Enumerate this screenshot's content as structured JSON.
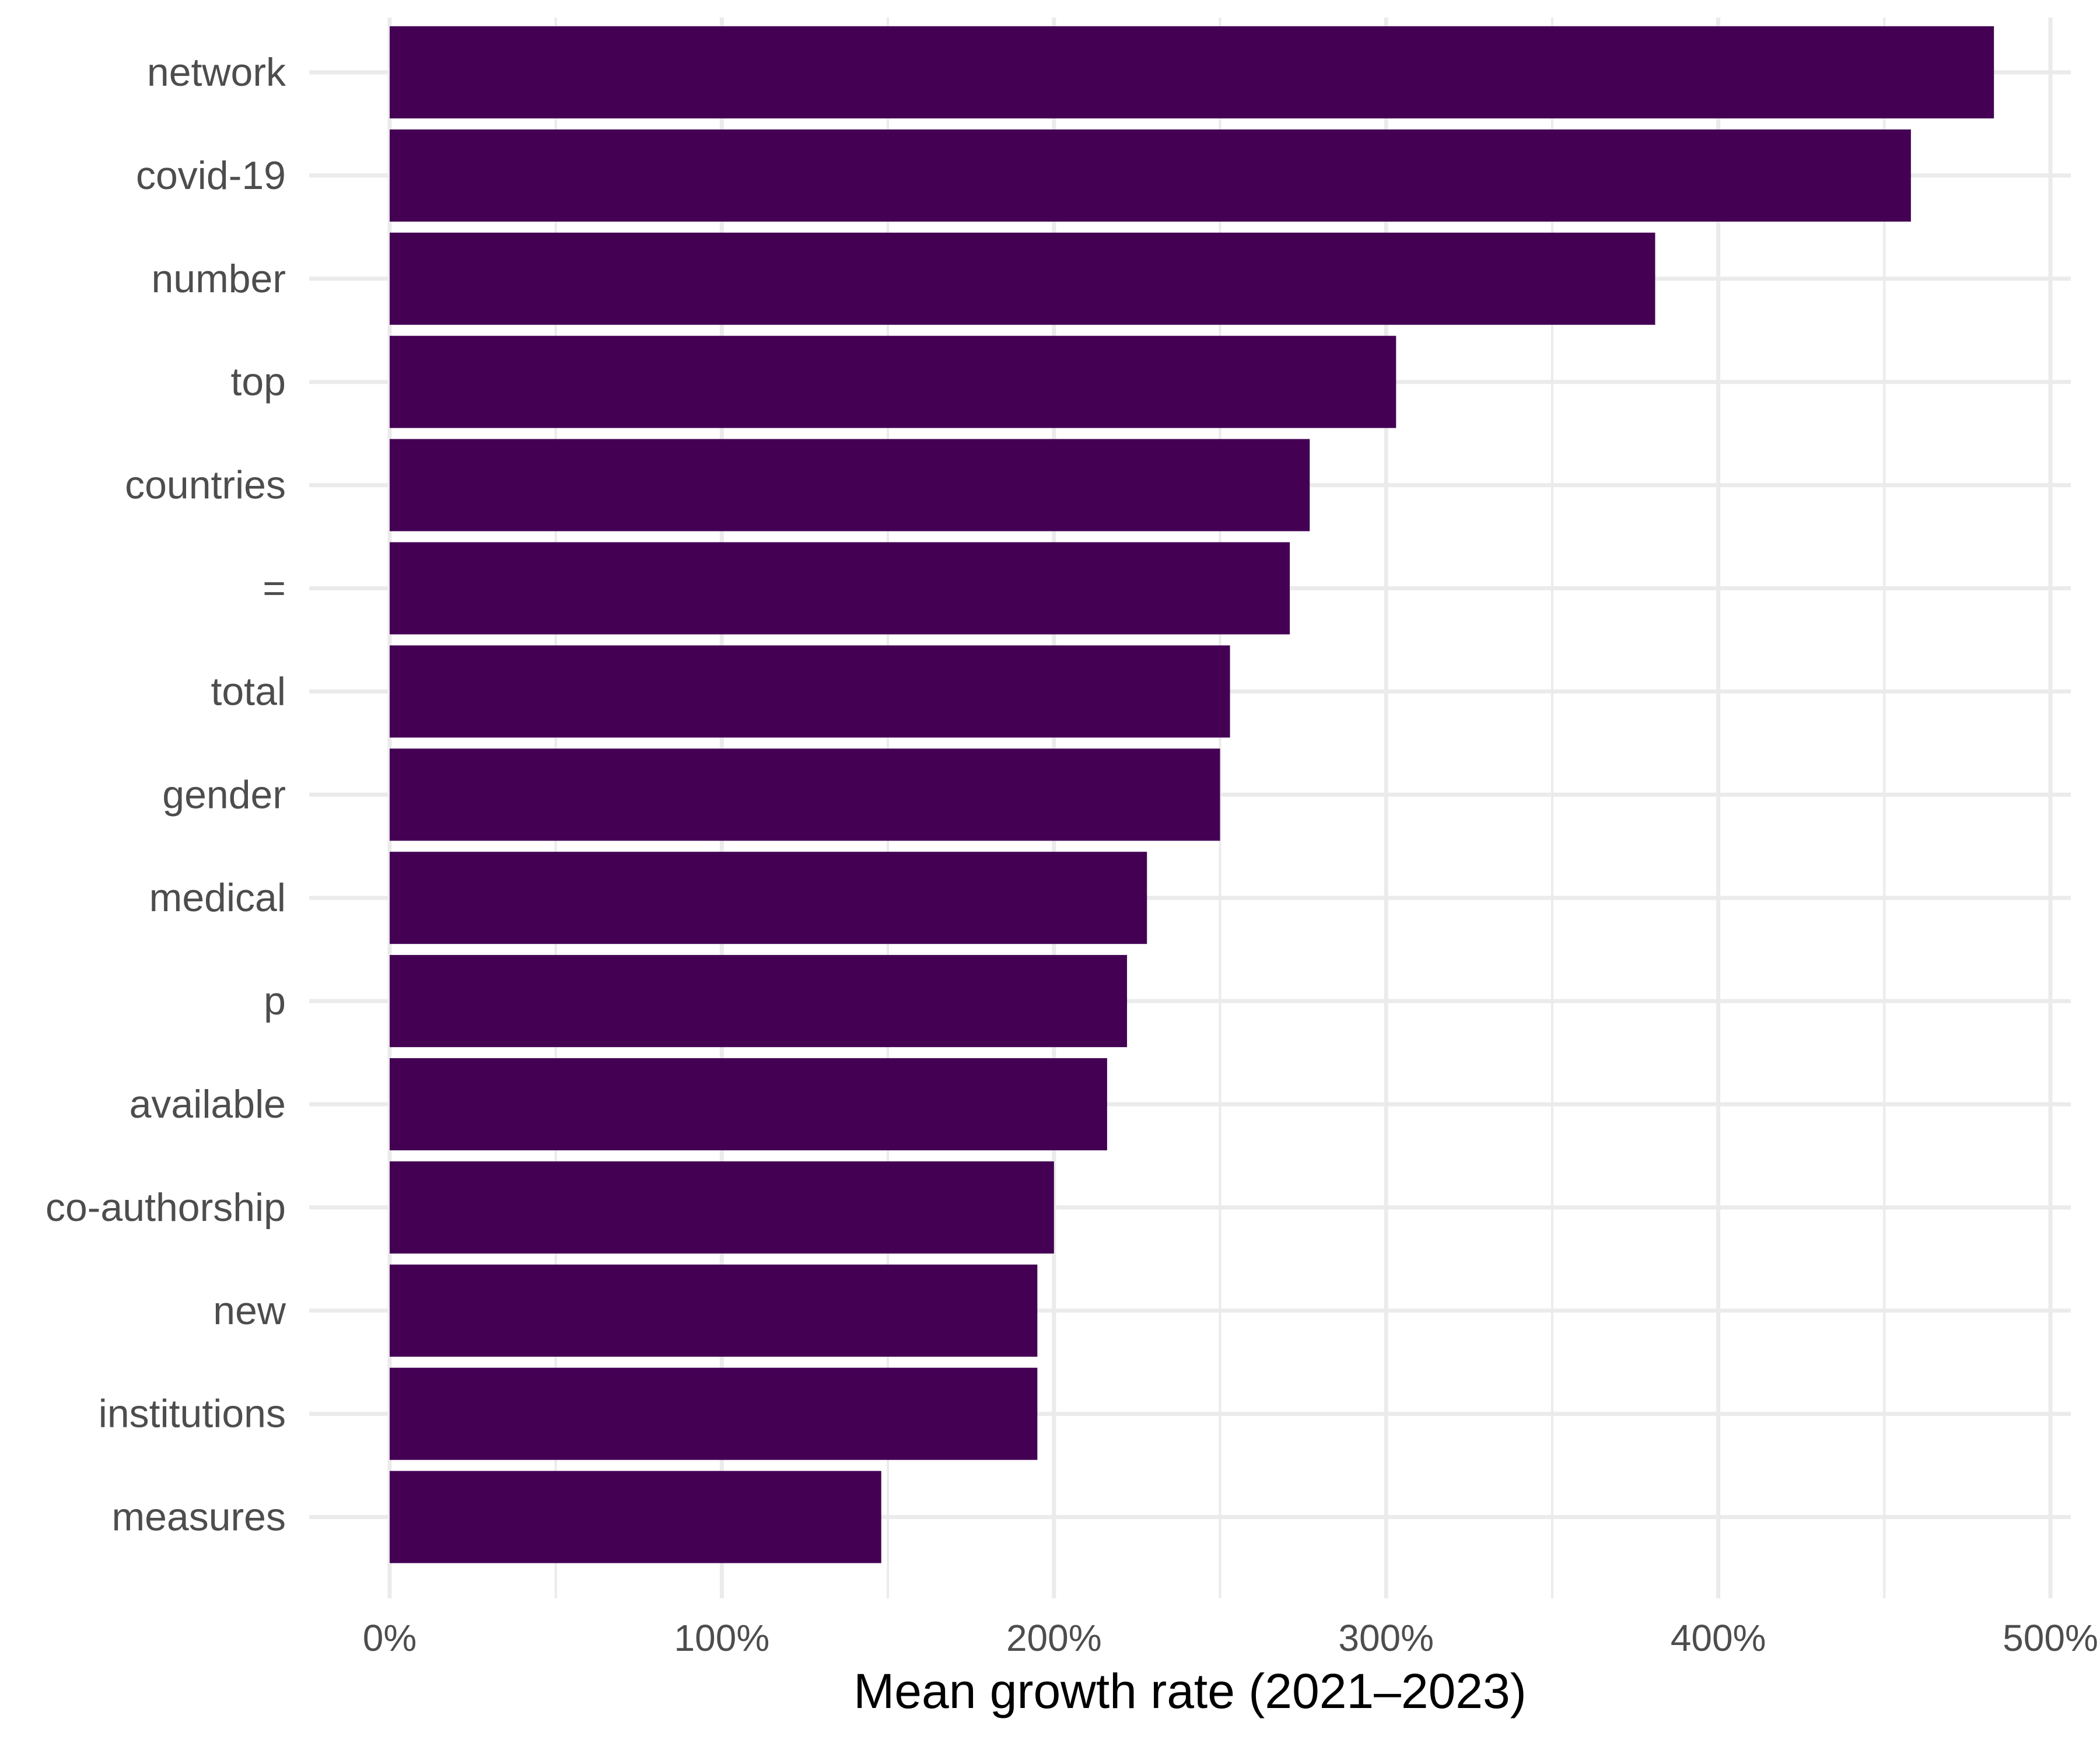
{
  "chart_data": {
    "type": "bar",
    "orientation": "horizontal",
    "categories": [
      "network",
      "covid-19",
      "number",
      "top",
      "countries",
      "=",
      "total",
      "gender",
      "medical",
      "p",
      "available",
      "co-authorship",
      "new",
      "institutions",
      "measures"
    ],
    "values": [
      483,
      458,
      381,
      303,
      277,
      271,
      253,
      250,
      228,
      222,
      216,
      200,
      195,
      195,
      148
    ],
    "value_unit": "%",
    "xlabel": "Mean growth rate (2021–2023)",
    "ylabel": "",
    "xlim": [
      0,
      500
    ],
    "x_ticks": [
      0,
      100,
      200,
      300,
      400,
      500
    ],
    "x_tick_labels": [
      "0%",
      "100%",
      "200%",
      "300%",
      "400%",
      "500%"
    ],
    "grid": true,
    "legend": "none",
    "colors": {
      "bar": "#440154",
      "grid": "#ebebeb",
      "tick_text": "#4d4d4d",
      "title_text": "#000000"
    }
  }
}
